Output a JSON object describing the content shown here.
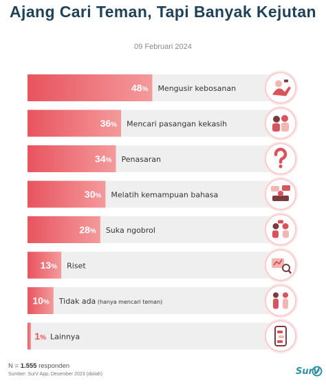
{
  "title": "Ajang Cari Teman, Tapi Banyak Kejutan",
  "date": "09 Februari 2024",
  "footer": {
    "n_prefix": "N = ",
    "n_value": "1.555",
    "n_suffix": " responden",
    "source": "Sumber: SurV App,  Desember 2023 (diolah)"
  },
  "brand": "SurV",
  "colors": {
    "bar_start": "#e8545e",
    "bar_end": "#f49a9c",
    "track": "#efefef",
    "icon_ring": "#f7c7c9",
    "title": "#1f4257"
  },
  "chart_data": {
    "type": "bar",
    "orientation": "horizontal",
    "unit": "%",
    "xlim": [
      0,
      100
    ],
    "categories": [
      "Mengusir kebosanan",
      "Mencari pasangan kekasih",
      "Penasaran",
      "Melatih kemampuan bahasa",
      "Suka ngobrol",
      "Riset",
      "Tidak ada",
      "Lainnya"
    ],
    "notes": [
      "",
      "",
      "",
      "",
      "",
      "",
      "(hanya mencari teman)",
      ""
    ],
    "icons": [
      "bored-person-icon",
      "couple-icon",
      "question-mark-icon",
      "language-chat-icon",
      "conversation-icon",
      "research-icon",
      "friends-icon",
      "phone-chat-icon"
    ],
    "values": [
      48,
      36,
      34,
      30,
      28,
      13,
      10,
      1
    ]
  }
}
